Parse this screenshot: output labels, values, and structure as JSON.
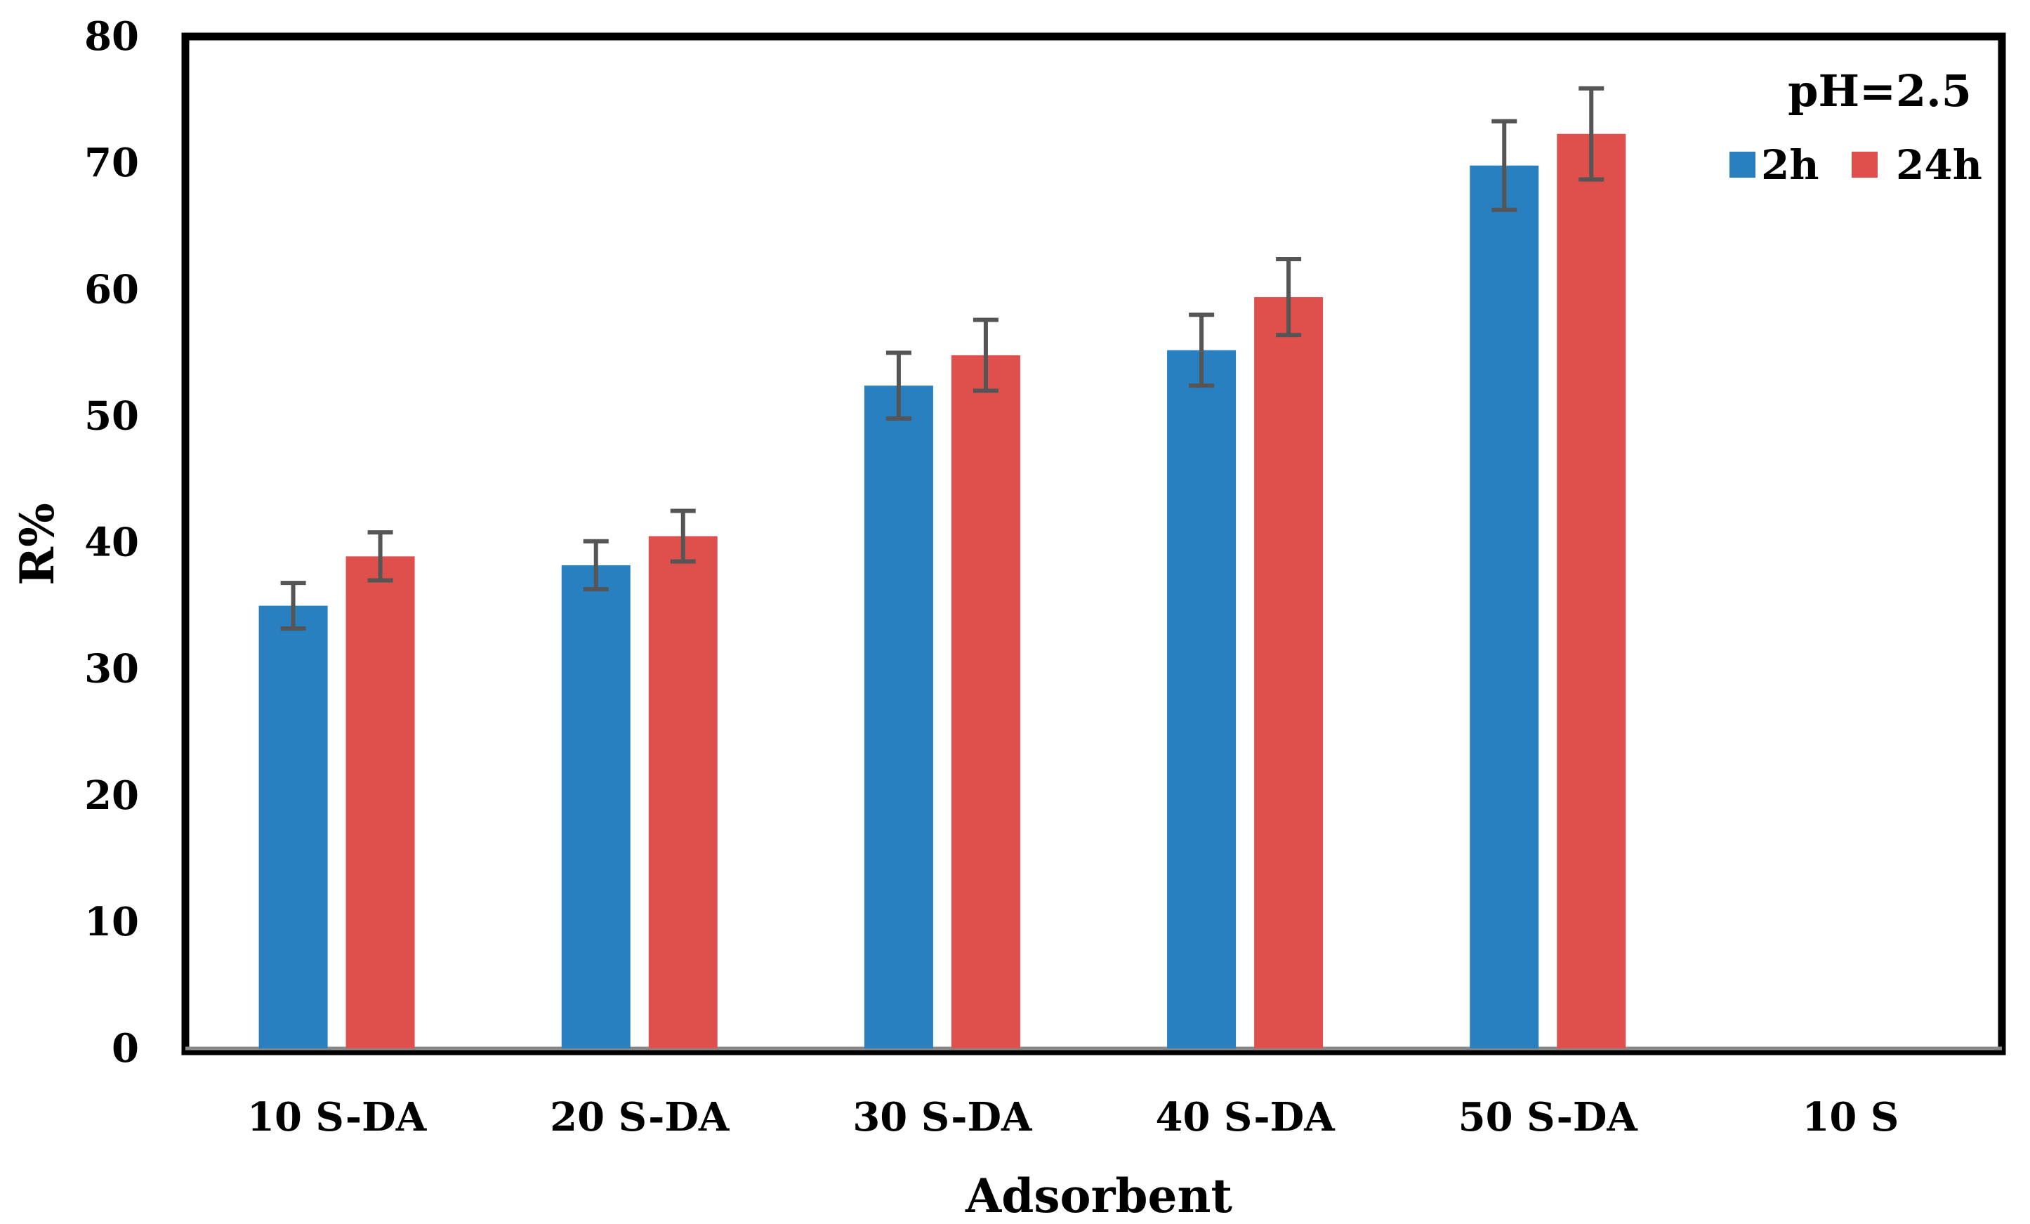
{
  "chart_data": {
    "type": "bar",
    "title": "",
    "xlabel": "Adsorbent",
    "ylabel": "R%",
    "ylim": [
      0,
      80
    ],
    "yticks": [
      "0",
      "10",
      "20",
      "30",
      "40",
      "50",
      "60",
      "70",
      "80"
    ],
    "grid": false,
    "categories": [
      "10 S-DA",
      "20 S-DA",
      "30 S-DA",
      "40 S-DA",
      "50 S-DA",
      "10 S"
    ],
    "series": [
      {
        "name": "2h",
        "color": "#2880c0",
        "values": [
          35.0,
          38.2,
          52.4,
          55.2,
          69.8,
          null
        ],
        "errors": [
          1.8,
          1.9,
          2.6,
          2.8,
          3.5,
          null
        ]
      },
      {
        "name": "24h",
        "color": "#df504d",
        "values": [
          38.9,
          40.5,
          54.8,
          59.4,
          72.3,
          null
        ],
        "errors": [
          1.9,
          2.0,
          2.8,
          3.0,
          3.6,
          null
        ]
      }
    ],
    "annotation": "pH=2.5",
    "legend_position": "top-right",
    "error_bar_color": "#555555"
  }
}
